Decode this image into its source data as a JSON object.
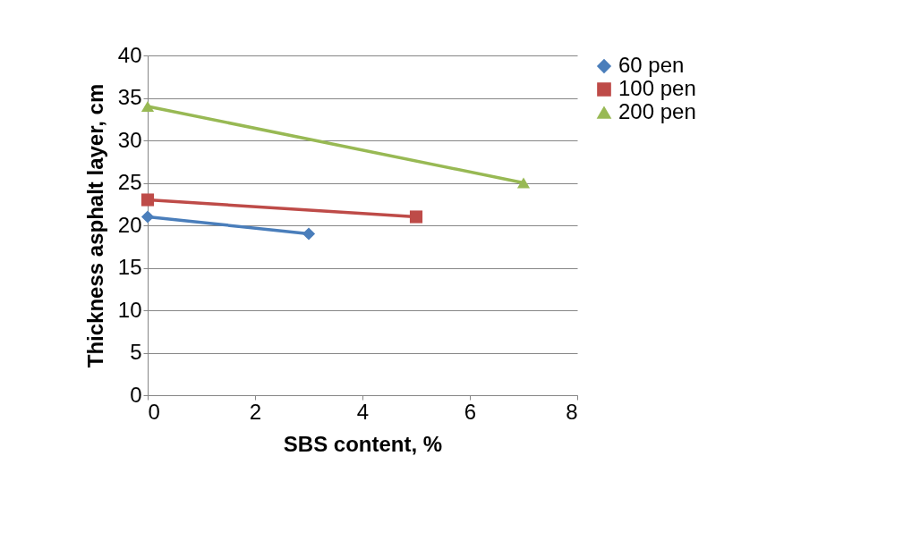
{
  "chart_data": {
    "type": "line",
    "xlabel": "SBS content, %",
    "ylabel": "Thickness asphalt layer, cm",
    "xlim": [
      0,
      8
    ],
    "xticks": [
      0,
      2,
      4,
      6,
      8
    ],
    "ylim": [
      0,
      40
    ],
    "yticks": [
      0,
      5,
      10,
      15,
      20,
      25,
      30,
      35,
      40
    ],
    "grid": "y",
    "legend": "right",
    "line_style": "solid",
    "series": [
      {
        "name": "60 pen",
        "color": "#4a7ebb",
        "marker": "diamond",
        "x": [
          0,
          3
        ],
        "values": [
          21,
          19
        ]
      },
      {
        "name": "100 pen",
        "color": "#be4b48",
        "marker": "square",
        "x": [
          0,
          5
        ],
        "values": [
          23,
          21
        ]
      },
      {
        "name": "200 pen",
        "color": "#98b954",
        "marker": "triangle",
        "x": [
          0,
          7
        ],
        "values": [
          34,
          25
        ]
      }
    ]
  }
}
